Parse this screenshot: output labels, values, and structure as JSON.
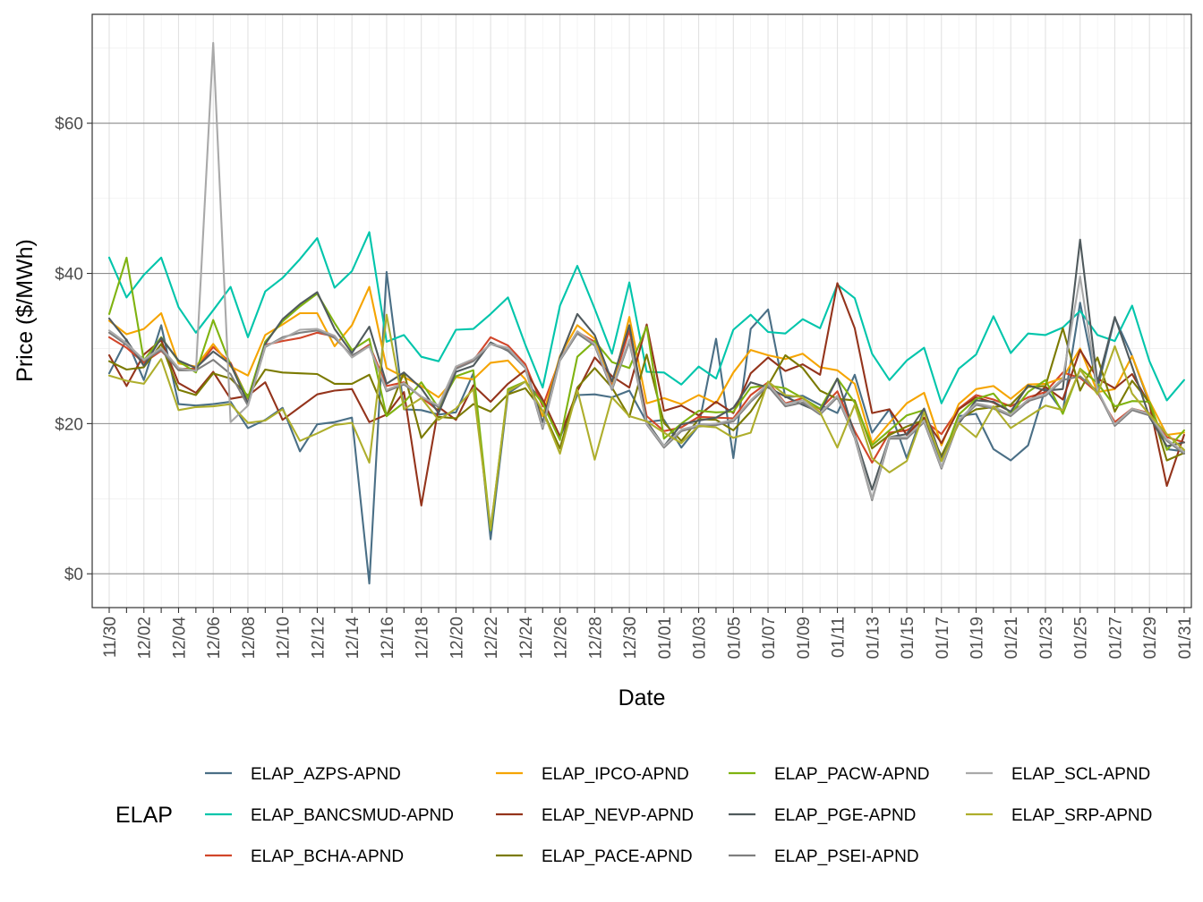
{
  "chart_data": {
    "type": "line",
    "xlabel": "Date",
    "ylabel": "Price ($/MWh)",
    "legend_title": "ELAP",
    "legend_position": "bottom",
    "grid": true,
    "ylim": [
      -4.5,
      74.5
    ],
    "y_ticks": [
      {
        "value": 0,
        "label": "$0"
      },
      {
        "value": 20,
        "label": "$20"
      },
      {
        "value": 40,
        "label": "$40"
      },
      {
        "value": 60,
        "label": "$60"
      }
    ],
    "x_ticks": [
      "11/30",
      "12/02",
      "12/04",
      "12/06",
      "12/08",
      "12/10",
      "12/12",
      "12/14",
      "12/16",
      "12/18",
      "12/20",
      "12/22",
      "12/24",
      "12/26",
      "12/28",
      "12/30",
      "01/01",
      "01/03",
      "01/05",
      "01/07",
      "01/09",
      "01/11",
      "01/13",
      "01/15",
      "01/17",
      "01/19",
      "01/21",
      "01/23",
      "01/25",
      "01/27",
      "01/29",
      "01/31"
    ],
    "x": [
      "11/30",
      "12/01",
      "12/02",
      "12/03",
      "12/04",
      "12/05",
      "12/06",
      "12/07",
      "12/08",
      "12/09",
      "12/10",
      "12/11",
      "12/12",
      "12/13",
      "12/14",
      "12/15",
      "12/16",
      "12/17",
      "12/18",
      "12/19",
      "12/20",
      "12/21",
      "12/22",
      "12/23",
      "12/24",
      "12/25",
      "12/26",
      "12/27",
      "12/28",
      "12/29",
      "12/30",
      "12/31",
      "01/01",
      "01/02",
      "01/03",
      "01/04",
      "01/05",
      "01/06",
      "01/07",
      "01/08",
      "01/09",
      "01/10",
      "01/11",
      "01/12",
      "01/13",
      "01/14",
      "01/15",
      "01/16",
      "01/17",
      "01/18",
      "01/19",
      "01/20",
      "01/21",
      "01/22",
      "01/23",
      "01/24",
      "01/25",
      "01/26",
      "01/27",
      "01/28",
      "01/29",
      "01/30",
      "01/31"
    ],
    "series": [
      {
        "name": "ELAP_AZPS-APND",
        "color": "#4a6f86",
        "values": [
          26.7,
          31.2,
          25.8,
          33.1,
          22.6,
          22.4,
          22.6,
          22.9,
          19.4,
          20.5,
          22.1,
          16.3,
          19.9,
          20.2,
          20.8,
          -1.3,
          40.2,
          21.9,
          21.8,
          21.2,
          21.5,
          26.7,
          4.6,
          24.0,
          25.6,
          23.0,
          18.1,
          23.8,
          23.9,
          23.5,
          24.4,
          20.2,
          20.5,
          16.8,
          19.7,
          31.3,
          15.4,
          32.6,
          35.2,
          23.5,
          23.7,
          22.5,
          21.4,
          26.5,
          18.8,
          21.9,
          15.4,
          21.9,
          14.1,
          21.0,
          21.3,
          16.6,
          15.1,
          17.1,
          24.7,
          21.6,
          36.1,
          24.6,
          34.1,
          29.0,
          22.7,
          16.6,
          16.3
        ]
      },
      {
        "name": "ELAP_BANCSMUD-APND",
        "color": "#00c5ab",
        "values": [
          42.1,
          36.8,
          39.8,
          42.1,
          35.5,
          32.1,
          35.1,
          38.2,
          31.5,
          37.6,
          39.4,
          41.9,
          44.7,
          38.1,
          40.3,
          45.5,
          30.9,
          31.8,
          28.9,
          28.3,
          32.5,
          32.6,
          34.6,
          36.8,
          30.5,
          24.8,
          35.7,
          41.0,
          35.3,
          29.3,
          38.8,
          26.9,
          26.8,
          25.2,
          27.6,
          26.0,
          32.5,
          34.5,
          32.2,
          32.0,
          33.9,
          32.7,
          38.5,
          36.7,
          29.3,
          25.8,
          28.4,
          30.1,
          22.7,
          27.3,
          29.2,
          34.3,
          29.4,
          32.0,
          31.8,
          32.8,
          35.0,
          31.8,
          31.0,
          35.7,
          28.3,
          23.1,
          25.8
        ]
      },
      {
        "name": "ELAP_BCHA-APND",
        "color": "#d1462a",
        "values": [
          31.5,
          30.1,
          28.1,
          29.7,
          27.3,
          27.3,
          30.2,
          28.1,
          23.3,
          30.5,
          31.0,
          31.4,
          32.1,
          31.6,
          29.0,
          30.5,
          25.0,
          25.5,
          23.5,
          21.7,
          27.4,
          28.4,
          31.5,
          30.4,
          27.9,
          22.3,
          28.6,
          32.2,
          30.9,
          25.0,
          32.4,
          21.0,
          19.0,
          19.5,
          20.9,
          20.8,
          20.7,
          23.8,
          25.5,
          22.7,
          23.4,
          21.9,
          24.3,
          19.0,
          14.8,
          18.8,
          19.1,
          20.4,
          18.6,
          22.0,
          23.8,
          23.2,
          22.3,
          23.5,
          24.2,
          26.8,
          26.1,
          24.1,
          20.2,
          22.0,
          21.4,
          18.2,
          17.5
        ]
      },
      {
        "name": "ELAP_IPCO-APND",
        "color": "#f5a400",
        "values": [
          33.7,
          31.9,
          32.6,
          34.7,
          28.0,
          27.6,
          30.6,
          27.6,
          26.4,
          31.8,
          33.2,
          34.7,
          34.7,
          30.3,
          33.1,
          38.2,
          27.4,
          26.2,
          25.0,
          23.5,
          26.2,
          25.9,
          28.1,
          28.4,
          25.9,
          21.0,
          29.0,
          33.1,
          31.3,
          24.7,
          34.2,
          22.7,
          23.4,
          22.6,
          23.8,
          22.7,
          26.8,
          29.8,
          29.1,
          28.6,
          29.3,
          27.5,
          27.1,
          25.3,
          17.4,
          20.1,
          22.7,
          24.1,
          17.1,
          22.6,
          24.6,
          25.0,
          23.3,
          25.2,
          25.3,
          26.1,
          30.0,
          24.2,
          24.6,
          29.0,
          23.0,
          18.5,
          18.8
        ]
      },
      {
        "name": "ELAP_NEVP-APND",
        "color": "#94341c",
        "values": [
          29.1,
          25.0,
          29.2,
          31.1,
          25.4,
          24.1,
          26.9,
          23.3,
          23.7,
          25.5,
          20.5,
          22.2,
          23.9,
          24.4,
          24.6,
          20.2,
          21.2,
          24.2,
          9.1,
          22.2,
          20.5,
          25.1,
          22.9,
          25.3,
          27.1,
          23.2,
          18.3,
          24.3,
          28.8,
          26.3,
          24.8,
          33.2,
          21.7,
          22.4,
          21.1,
          22.9,
          21.4,
          26.7,
          28.8,
          27.0,
          27.9,
          26.5,
          38.7,
          32.7,
          21.4,
          21.9,
          18.5,
          20.8,
          17.4,
          21.9,
          23.5,
          22.8,
          21.6,
          22.9,
          24.9,
          23.2,
          29.8,
          26.0,
          24.7,
          26.6,
          22.6,
          11.7,
          18.5
        ]
      },
      {
        "name": "ELAP_PACE-APND",
        "color": "#7b7a00",
        "values": [
          28.3,
          27.2,
          27.5,
          30.6,
          24.5,
          23.8,
          26.7,
          26.0,
          23.7,
          27.2,
          26.8,
          26.7,
          26.6,
          25.3,
          25.3,
          26.5,
          21.0,
          26.8,
          18.1,
          20.9,
          20.7,
          22.6,
          21.6,
          23.9,
          24.7,
          21.7,
          16.7,
          24.8,
          27.4,
          24.8,
          20.9,
          29.2,
          20.1,
          17.7,
          20.6,
          20.5,
          19.1,
          21.6,
          25.1,
          29.1,
          27.4,
          24.4,
          23.3,
          23.1,
          16.7,
          18.5,
          19.6,
          20.5,
          15.7,
          20.5,
          21.9,
          22.2,
          22.5,
          24.9,
          25.0,
          32.7,
          24.4,
          28.8,
          21.6,
          25.7,
          22.8,
          15.1,
          16.1
        ]
      },
      {
        "name": "ELAP_PACW-APND",
        "color": "#7fb310",
        "values": [
          34.6,
          42.1,
          28.4,
          31.5,
          28.3,
          26.8,
          33.8,
          27.8,
          23.4,
          30.9,
          33.6,
          35.6,
          37.3,
          33.4,
          29.8,
          31.3,
          21.0,
          22.8,
          25.5,
          22.1,
          26.3,
          27.1,
          5.8,
          24.6,
          25.6,
          22.7,
          17.8,
          28.9,
          31.0,
          28.2,
          27.4,
          32.9,
          18.0,
          20.0,
          21.7,
          21.5,
          21.6,
          24.8,
          25.1,
          24.7,
          23.4,
          22.0,
          26.0,
          22.8,
          17.1,
          19.1,
          21.1,
          21.8,
          15.0,
          21.2,
          23.3,
          24.0,
          21.3,
          24.2,
          25.8,
          21.3,
          27.3,
          25.4,
          22.3,
          23.0,
          22.9,
          16.5,
          19.1
        ]
      },
      {
        "name": "ELAP_PGE-APND",
        "color": "#505a5d",
        "values": [
          34.0,
          31.1,
          27.7,
          31.4,
          28.4,
          27.4,
          29.6,
          27.9,
          22.7,
          30.6,
          33.9,
          35.9,
          37.5,
          32.6,
          29.4,
          32.9,
          25.3,
          26.8,
          24.7,
          21.4,
          26.9,
          27.7,
          30.8,
          29.7,
          27.5,
          20.1,
          28.8,
          34.6,
          31.8,
          25.6,
          33.1,
          20.3,
          17.0,
          19.9,
          20.4,
          20.8,
          22.1,
          25.5,
          24.8,
          23.6,
          22.5,
          21.5,
          26.0,
          18.5,
          11.2,
          18.2,
          18.6,
          22.0,
          15.3,
          20.0,
          23.1,
          22.9,
          21.6,
          25.1,
          24.4,
          24.6,
          44.5,
          25.4,
          34.2,
          27.6,
          20.9,
          17.0,
          17.5
        ]
      },
      {
        "name": "ELAP_PSEI-APND",
        "color": "#7f7f7f",
        "values": [
          32.1,
          30.5,
          28.4,
          29.8,
          27.1,
          27.1,
          28.5,
          26.6,
          22.4,
          30.2,
          31.5,
          32.1,
          32.4,
          31.4,
          29.1,
          30.3,
          24.3,
          25.2,
          23.6,
          22.2,
          27.3,
          28.3,
          30.6,
          29.8,
          27.4,
          19.3,
          28.4,
          32.0,
          30.4,
          24.5,
          30.9,
          19.9,
          16.8,
          19.0,
          19.6,
          19.8,
          20.3,
          22.9,
          25.0,
          22.3,
          22.8,
          21.2,
          23.5,
          18.1,
          9.8,
          18.0,
          18.0,
          20.2,
          14.0,
          20.3,
          22.5,
          22.0,
          21.0,
          23.0,
          23.7,
          25.8,
          26.3,
          24.3,
          19.7,
          21.8,
          21.1,
          17.7,
          16.0
        ]
      },
      {
        "name": "ELAP_SCL-APND",
        "color": "#a9a9a9",
        "values": [
          32.4,
          30.7,
          28.5,
          30.1,
          27.4,
          27.0,
          70.7,
          20.2,
          22.4,
          30.3,
          31.3,
          32.5,
          32.6,
          31.7,
          28.8,
          30.3,
          24.5,
          25.4,
          23.6,
          22.4,
          27.6,
          28.6,
          30.6,
          30.1,
          27.5,
          19.5,
          28.5,
          32.3,
          30.6,
          24.7,
          31.2,
          20.0,
          17.0,
          19.2,
          19.8,
          20.0,
          20.5,
          23.1,
          25.3,
          22.6,
          23.1,
          21.4,
          23.7,
          18.3,
          10.0,
          18.2,
          18.2,
          20.4,
          14.2,
          20.5,
          22.7,
          22.2,
          21.2,
          23.2,
          23.9,
          26.0,
          39.6,
          24.5,
          19.9,
          22.0,
          21.3,
          17.9,
          16.2
        ]
      },
      {
        "name": "ELAP_SRP-APND",
        "color": "#aeae2c",
        "values": [
          26.4,
          25.7,
          25.3,
          28.6,
          21.8,
          22.2,
          22.3,
          22.6,
          20.1,
          20.4,
          21.9,
          17.7,
          18.7,
          19.8,
          20.1,
          14.8,
          34.5,
          21.9,
          23.4,
          20.5,
          22.0,
          24.6,
          6.0,
          24.3,
          25.6,
          21.7,
          16.0,
          24.5,
          15.2,
          23.5,
          21.0,
          20.3,
          18.8,
          17.4,
          19.7,
          19.5,
          18.1,
          18.8,
          25.6,
          23.8,
          23.5,
          21.5,
          16.8,
          22.5,
          15.4,
          13.5,
          15.0,
          21.5,
          15.0,
          20.1,
          18.2,
          22.3,
          19.4,
          20.9,
          22.4,
          21.8,
          27.2,
          23.9,
          30.3,
          24.0,
          21.2,
          18.6,
          16.5
        ]
      }
    ]
  }
}
